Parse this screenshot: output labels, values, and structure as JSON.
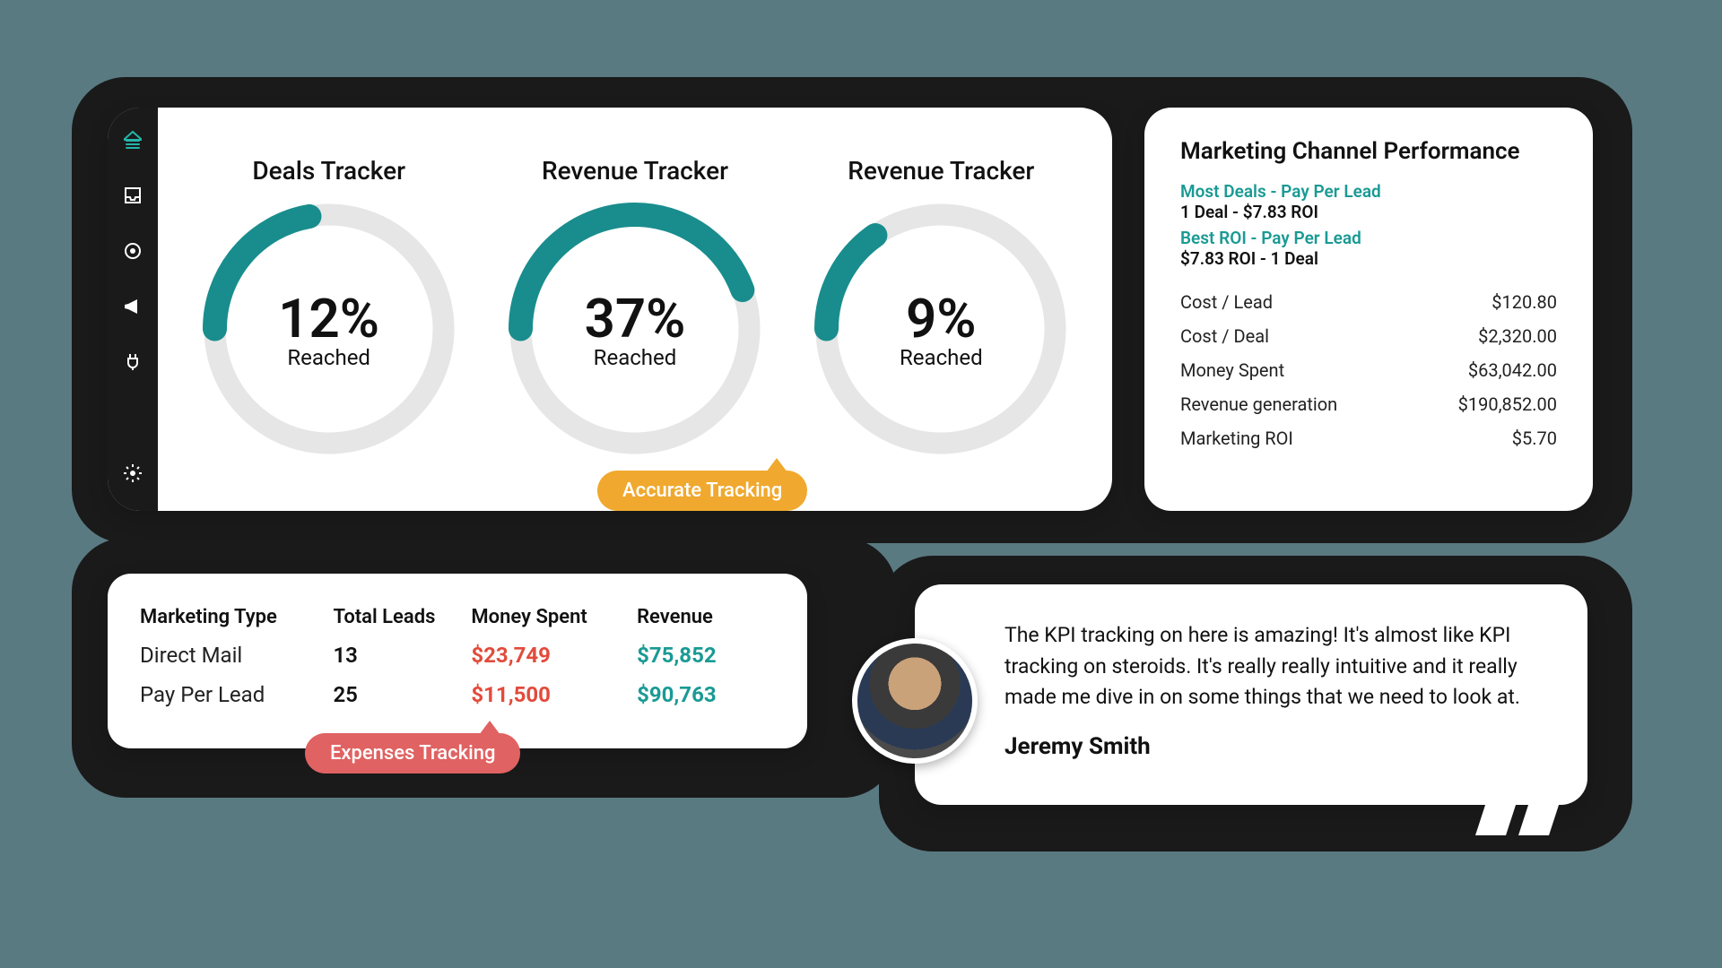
{
  "colors": {
    "teal": "#198d8d",
    "orange": "#f0a92e",
    "red_text": "#e24b3b",
    "teal_text": "#1a9a94",
    "callout_red": "#e06262",
    "gauge_track": "#e6e6e6"
  },
  "sidebar": {
    "icons": [
      "home",
      "inbox",
      "target",
      "megaphone",
      "plug"
    ],
    "settings_icon": "gear"
  },
  "trackers": [
    {
      "title": "Deals Tracker",
      "pct": 12,
      "pct_text": "12%",
      "sub": "Reached",
      "arc_deg": 80
    },
    {
      "title": "Revenue Tracker",
      "pct": 37,
      "pct_text": "37%",
      "sub": "Reached",
      "arc_deg": 160
    },
    {
      "title": "Revenue Tracker",
      "pct": 9,
      "pct_text": "9%",
      "sub": "Reached",
      "arc_deg": 55
    }
  ],
  "callouts": {
    "accurate": "Accurate Tracking",
    "expenses": "Expenses Tracking"
  },
  "performance": {
    "title": "Marketing Channel Performance",
    "most_deals_label": "Most Deals - Pay Per Lead",
    "most_deals_sub": "1 Deal - $7.83 ROI",
    "best_roi_label": "Best ROI - Pay Per Lead",
    "best_roi_sub": "$7.83 ROI -  1 Deal",
    "rows": [
      {
        "label": "Cost / Lead",
        "value": "$120.80"
      },
      {
        "label": "Cost / Deal",
        "value": "$2,320.00"
      },
      {
        "label": "Money Spent",
        "value": "$63,042.00"
      },
      {
        "label": "Revenue generation",
        "value": "$190,852.00"
      },
      {
        "label": "Marketing ROI",
        "value": "$5.70"
      }
    ]
  },
  "marketing_table": {
    "headers": {
      "type": "Marketing Type",
      "leads": "Total Leads",
      "spent": "Money Spent",
      "revenue": "Revenue"
    },
    "rows": [
      {
        "type": "Direct Mail",
        "leads": "13",
        "spent": "$23,749",
        "revenue": "$75,852"
      },
      {
        "type": "Pay Per Lead",
        "leads": "25",
        "spent": "$11,500",
        "revenue": "$90,763"
      }
    ]
  },
  "testimonial": {
    "text": "The KPI tracking on here is amazing! It's almost like KPI tracking on steroids. It's really really intuitive and it really made me dive in on some things that we need to look at.",
    "name": "Jeremy Smith"
  }
}
